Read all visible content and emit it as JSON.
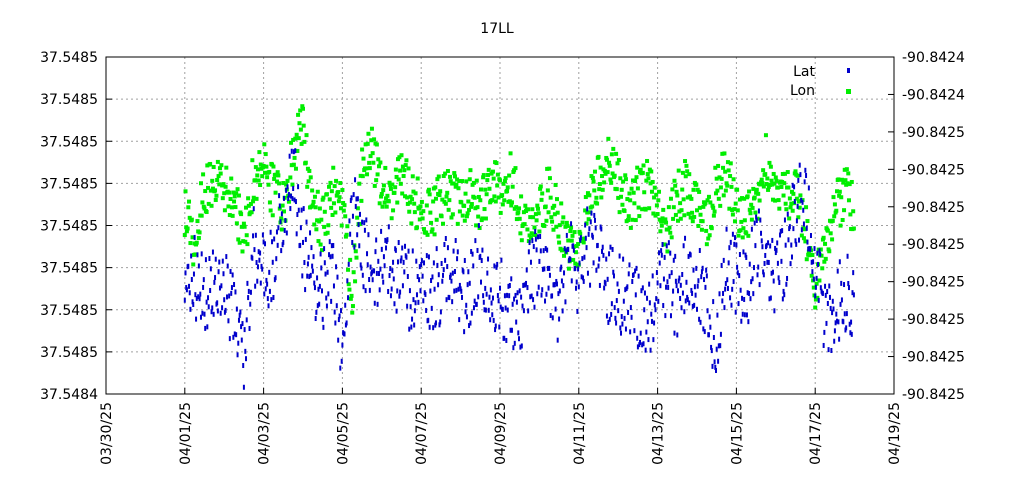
{
  "chart_data": {
    "type": "scatter",
    "title": "17LL",
    "xlabel": "",
    "ylabel": "",
    "y2label": "",
    "grid": true,
    "legend_position": "top-right",
    "x_range": [
      "03/30/25",
      "04/19/25"
    ],
    "x_ticks": [
      "03/30/25",
      "04/01/25",
      "04/03/25",
      "04/05/25",
      "04/07/25",
      "04/09/25",
      "04/11/25",
      "04/13/25",
      "04/15/25",
      "04/17/25",
      "04/19/25"
    ],
    "y_left_ticks": [
      "37.5485",
      "37.5485",
      "37.5485",
      "37.5485",
      "37.5485",
      "37.5485",
      "37.5485",
      "37.5485",
      "37.5484"
    ],
    "y_right_ticks": [
      "-90.8424",
      "-90.8424",
      "-90.8425",
      "-90.8425",
      "-90.8425",
      "-90.8425",
      "-90.8425",
      "-90.8425",
      "-90.8425",
      "-90.8425"
    ],
    "series": [
      {
        "name": "Lat",
        "axis": "left",
        "color": "#0000cc",
        "note_values": "normalized fraction of left axis span (0=bottom,1=top)",
        "points": [
          [
            "04/01/25 00:00",
            0.3
          ],
          [
            "04/01/25 06:00",
            0.35
          ],
          [
            "04/01/25 12:00",
            0.28
          ],
          [
            "04/01/25 18:00",
            0.33
          ],
          [
            "04/02/25 00:00",
            0.3
          ],
          [
            "04/02/25 06:00",
            0.25
          ],
          [
            "04/02/25 12:00",
            0.1
          ],
          [
            "04/02/25 18:00",
            0.45
          ],
          [
            "04/03/25 00:00",
            0.35
          ],
          [
            "04/03/25 06:00",
            0.4
          ],
          [
            "04/03/25 12:00",
            0.55
          ],
          [
            "04/03/25 18:00",
            0.65
          ],
          [
            "04/04/25 00:00",
            0.45
          ],
          [
            "04/04/25 06:00",
            0.35
          ],
          [
            "04/04/25 12:00",
            0.3
          ],
          [
            "04/04/25 18:00",
            0.4
          ],
          [
            "04/05/25 00:00",
            0.12
          ],
          [
            "04/05/25 06:00",
            0.55
          ],
          [
            "04/05/25 12:00",
            0.45
          ],
          [
            "04/05/25 18:00",
            0.35
          ],
          [
            "04/06/25 00:00",
            0.4
          ],
          [
            "04/06/25 06:00",
            0.38
          ],
          [
            "04/06/25 12:00",
            0.33
          ],
          [
            "04/06/25 18:00",
            0.3
          ],
          [
            "04/07/25 00:00",
            0.35
          ],
          [
            "04/07/25 06:00",
            0.3
          ],
          [
            "04/07/25 12:00",
            0.32
          ],
          [
            "04/07/25 18:00",
            0.4
          ],
          [
            "04/08/25 00:00",
            0.28
          ],
          [
            "04/08/25 06:00",
            0.33
          ],
          [
            "04/08/25 12:00",
            0.4
          ],
          [
            "04/08/25 18:00",
            0.3
          ],
          [
            "04/09/25 00:00",
            0.3
          ],
          [
            "04/09/25 06:00",
            0.25
          ],
          [
            "04/09/25 12:00",
            0.2
          ],
          [
            "04/09/25 18:00",
            0.35
          ],
          [
            "04/10/25 00:00",
            0.38
          ],
          [
            "04/10/25 06:00",
            0.3
          ],
          [
            "04/10/25 12:00",
            0.27
          ],
          [
            "04/10/25 18:00",
            0.4
          ],
          [
            "04/11/25 00:00",
            0.35
          ],
          [
            "04/11/25 06:00",
            0.45
          ],
          [
            "04/11/25 12:00",
            0.4
          ],
          [
            "04/11/25 18:00",
            0.32
          ],
          [
            "04/12/25 00:00",
            0.3
          ],
          [
            "04/12/25 06:00",
            0.28
          ],
          [
            "04/12/25 12:00",
            0.25
          ],
          [
            "04/12/25 18:00",
            0.2
          ],
          [
            "04/13/25 00:00",
            0.3
          ],
          [
            "04/13/25 06:00",
            0.35
          ],
          [
            "04/13/25 12:00",
            0.28
          ],
          [
            "04/13/25 18:00",
            0.38
          ],
          [
            "04/14/25 00:00",
            0.33
          ],
          [
            "04/14/25 06:00",
            0.25
          ],
          [
            "04/14/25 12:00",
            0.15
          ],
          [
            "04/14/25 18:00",
            0.4
          ],
          [
            "04/15/25 00:00",
            0.35
          ],
          [
            "04/15/25 06:00",
            0.3
          ],
          [
            "04/15/25 12:00",
            0.45
          ],
          [
            "04/15/25 18:00",
            0.38
          ],
          [
            "04/16/25 00:00",
            0.35
          ],
          [
            "04/16/25 06:00",
            0.4
          ],
          [
            "04/16/25 12:00",
            0.55
          ],
          [
            "04/16/25 18:00",
            0.6
          ],
          [
            "04/17/25 00:00",
            0.4
          ],
          [
            "04/17/25 06:00",
            0.2
          ],
          [
            "04/17/25 12:00",
            0.25
          ],
          [
            "04/17/25 18:00",
            0.3
          ],
          [
            "04/18/25 00:00",
            0.28
          ]
        ]
      },
      {
        "name": "Lon",
        "axis": "right",
        "color": "#00ee00",
        "note_values": "normalized fraction of right axis span (0=bottom,1=top)",
        "points": [
          [
            "04/01/25 00:00",
            0.55
          ],
          [
            "04/01/25 06:00",
            0.45
          ],
          [
            "04/01/25 12:00",
            0.6
          ],
          [
            "04/01/25 18:00",
            0.65
          ],
          [
            "04/02/25 00:00",
            0.6
          ],
          [
            "04/02/25 06:00",
            0.58
          ],
          [
            "04/02/25 12:00",
            0.45
          ],
          [
            "04/02/25 18:00",
            0.65
          ],
          [
            "04/03/25 00:00",
            0.68
          ],
          [
            "04/03/25 06:00",
            0.6
          ],
          [
            "04/03/25 12:00",
            0.55
          ],
          [
            "04/03/25 18:00",
            0.7
          ],
          [
            "04/04/25 00:00",
            0.8
          ],
          [
            "04/04/25 06:00",
            0.55
          ],
          [
            "04/04/25 12:00",
            0.5
          ],
          [
            "04/04/25 18:00",
            0.6
          ],
          [
            "04/05/25 00:00",
            0.55
          ],
          [
            "04/05/25 06:00",
            0.3
          ],
          [
            "04/05/25 12:00",
            0.65
          ],
          [
            "04/05/25 18:00",
            0.72
          ],
          [
            "04/06/25 00:00",
            0.62
          ],
          [
            "04/06/25 06:00",
            0.55
          ],
          [
            "04/06/25 12:00",
            0.68
          ],
          [
            "04/06/25 18:00",
            0.58
          ],
          [
            "04/07/25 00:00",
            0.55
          ],
          [
            "04/07/25 06:00",
            0.52
          ],
          [
            "04/07/25 12:00",
            0.58
          ],
          [
            "04/07/25 18:00",
            0.6
          ],
          [
            "04/08/25 00:00",
            0.57
          ],
          [
            "04/08/25 06:00",
            0.6
          ],
          [
            "04/08/25 12:00",
            0.55
          ],
          [
            "04/08/25 18:00",
            0.62
          ],
          [
            "04/09/25 00:00",
            0.6
          ],
          [
            "04/09/25 06:00",
            0.65
          ],
          [
            "04/09/25 12:00",
            0.55
          ],
          [
            "04/09/25 18:00",
            0.48
          ],
          [
            "04/10/25 00:00",
            0.55
          ],
          [
            "04/10/25 06:00",
            0.6
          ],
          [
            "04/10/25 12:00",
            0.52
          ],
          [
            "04/10/25 18:00",
            0.45
          ],
          [
            "04/11/25 00:00",
            0.45
          ],
          [
            "04/11/25 06:00",
            0.55
          ],
          [
            "04/11/25 12:00",
            0.65
          ],
          [
            "04/11/25 18:00",
            0.68
          ],
          [
            "04/12/25 00:00",
            0.62
          ],
          [
            "04/12/25 06:00",
            0.55
          ],
          [
            "04/12/25 12:00",
            0.6
          ],
          [
            "04/12/25 18:00",
            0.62
          ],
          [
            "04/13/25 00:00",
            0.58
          ],
          [
            "04/13/25 06:00",
            0.5
          ],
          [
            "04/13/25 12:00",
            0.58
          ],
          [
            "04/13/25 18:00",
            0.62
          ],
          [
            "04/14/25 00:00",
            0.55
          ],
          [
            "04/14/25 06:00",
            0.5
          ],
          [
            "04/14/25 12:00",
            0.62
          ],
          [
            "04/14/25 18:00",
            0.65
          ],
          [
            "04/15/25 00:00",
            0.55
          ],
          [
            "04/15/25 06:00",
            0.5
          ],
          [
            "04/15/25 12:00",
            0.58
          ],
          [
            "04/15/25 18:00",
            0.7
          ],
          [
            "04/16/25 00:00",
            0.6
          ],
          [
            "04/16/25 06:00",
            0.58
          ],
          [
            "04/16/25 12:00",
            0.62
          ],
          [
            "04/16/25 18:00",
            0.5
          ],
          [
            "04/17/25 00:00",
            0.3
          ],
          [
            "04/17/25 06:00",
            0.45
          ],
          [
            "04/17/25 12:00",
            0.55
          ],
          [
            "04/17/25 18:00",
            0.6
          ],
          [
            "04/18/25 00:00",
            0.55
          ]
        ]
      }
    ]
  }
}
